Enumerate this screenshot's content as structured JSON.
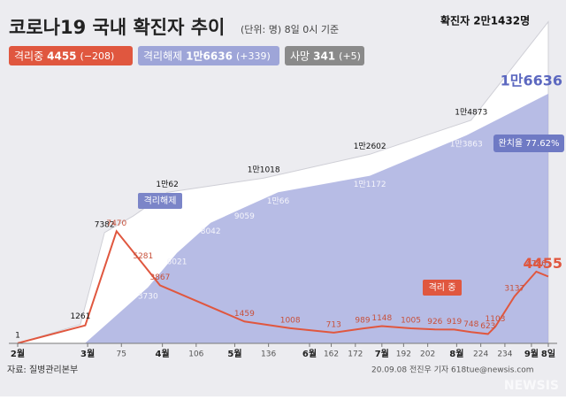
{
  "chart_data": {
    "type": "area",
    "title": "코로나19 국내 확진자 추이",
    "subtitle": "(단위: 명) 8일 0시 기준",
    "legend": [
      {
        "label": "격리중",
        "value": "4455",
        "change": "(−208)",
        "color": "#e0573f"
      },
      {
        "label": "격리해제",
        "value": "1만6636",
        "change": "(+339)",
        "color": "#9ea5d8"
      },
      {
        "label": "사망",
        "value": "341",
        "change": "(+5)",
        "color": "#8a8a8a"
      }
    ],
    "annotations": {
      "confirmed_total": "확진자 2만1432명",
      "recovery_rate": "완치율 77.62%",
      "released_tag": "격리해제",
      "isolation_tag": "격리 중"
    },
    "source": "자료: 질병관리본부",
    "credit": "20.09.08 전진우 기자 618tue@newsis.com",
    "watermark": "NEWSIS",
    "xlim": [
      32,
      252
    ],
    "ylim": [
      0,
      22000
    ],
    "xticks": [
      {
        "value": 32,
        "label": "2월"
      },
      {
        "value": 61,
        "label": "3월"
      },
      75,
      {
        "value": 92,
        "label": "4월"
      },
      106,
      {
        "value": 122,
        "label": "5월"
      },
      136,
      {
        "value": 153,
        "label": "6월"
      },
      162,
      172,
      {
        "value": 183,
        "label": "7월"
      },
      192,
      202,
      {
        "value": 214,
        "label": "8월"
      },
      224,
      234,
      {
        "value": 245,
        "label": "9월"
      },
      {
        "value": 252,
        "label": "8일"
      }
    ],
    "series": [
      {
        "name": "확진자",
        "color": "#ffffff",
        "x": [
          32,
          58,
          68,
          80,
          94,
          134,
          178,
          220,
          252
        ],
        "values": [
          1,
          1261,
          7382,
          8500,
          10062,
          11018,
          12602,
          14873,
          21432
        ],
        "value_labels": [
          "1",
          "1261",
          "7382",
          null,
          "1만62",
          "1만1018",
          "1만2602",
          "1만4873",
          null
        ]
      },
      {
        "name": "격리해제",
        "color": "#aab0e0",
        "x": [
          32,
          60,
          86,
          98,
          112,
          126,
          140,
          178,
          218,
          252
        ],
        "values": [
          0,
          24,
          3730,
          6021,
          8042,
          9059,
          10066,
          11172,
          13863,
          16636
        ],
        "value_labels": [
          null,
          "24",
          "3730",
          "6021",
          "8042",
          "9059",
          "1만66",
          "1만1172",
          "1만3863",
          "1만6636"
        ]
      },
      {
        "name": "격리중",
        "color": "#e0573f",
        "x": [
          32,
          60,
          73,
          84,
          91,
          126,
          145,
          163,
          175,
          183,
          195,
          205,
          213,
          220,
          227,
          230,
          238,
          247,
          252
        ],
        "values": [
          11,
          1200,
          7470,
          5281,
          3867,
          1459,
          1008,
          713,
          989,
          1148,
          1005,
          926,
          919,
          748,
          623,
          1103,
          3137,
          4786,
          4455
        ],
        "value_labels": [
          null,
          null,
          "7470",
          "5281",
          "3867",
          "1459",
          "1008",
          "713",
          "989",
          "1148",
          "1005",
          "926",
          "919",
          "748",
          "623",
          "1103",
          "3137",
          "4786",
          "4455"
        ]
      }
    ]
  }
}
